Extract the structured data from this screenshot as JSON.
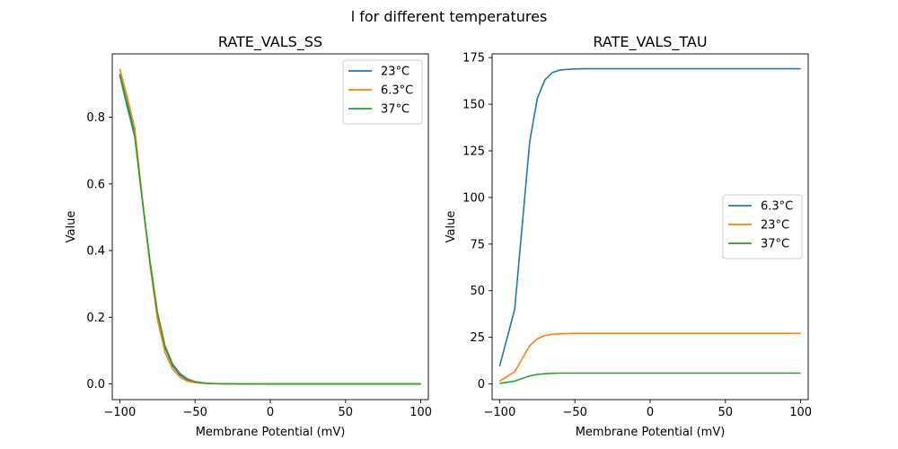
{
  "suptitle": "l for different temperatures",
  "chart_data": [
    {
      "type": "line",
      "title": "RATE_VALS_SS",
      "xlabel": "Membrane Potential (mV)",
      "ylabel": "Value",
      "xlim": [
        -105,
        105
      ],
      "ylim": [
        -0.047,
        0.99
      ],
      "xticks": [
        -100,
        -50,
        0,
        50,
        100
      ],
      "xtick_labels": [
        "−100",
        "−50",
        "0",
        "50",
        "100"
      ],
      "yticks": [
        0.0,
        0.2,
        0.4,
        0.6,
        0.8
      ],
      "ytick_labels": [
        "0.0",
        "0.2",
        "0.4",
        "0.6",
        "0.8"
      ],
      "legend_position": "top-right",
      "x": [
        -100,
        -95,
        -90,
        -85,
        -80,
        -75,
        -70,
        -65,
        -60,
        -55,
        -50,
        -45,
        -40,
        -30,
        -20,
        0,
        50,
        100
      ],
      "series": [
        {
          "name": "23°C",
          "color": "#1f77b4",
          "values": [
            0.93,
            0.84,
            0.75,
            0.55,
            0.37,
            0.21,
            0.11,
            0.055,
            0.027,
            0.012,
            0.006,
            0.003,
            0.0012,
            0.0003,
            0.0001,
            0.0,
            0.0,
            0.0
          ]
        },
        {
          "name": "6.3°C",
          "color": "#ff7f0e",
          "values": [
            0.945,
            0.86,
            0.765,
            0.555,
            0.36,
            0.195,
            0.095,
            0.045,
            0.02,
            0.008,
            0.004,
            0.002,
            0.0008,
            0.0002,
            0.0001,
            0.0,
            0.0,
            0.0
          ]
        },
        {
          "name": "37°C",
          "color": "#2ca02c",
          "values": [
            0.925,
            0.83,
            0.74,
            0.55,
            0.37,
            0.215,
            0.115,
            0.06,
            0.031,
            0.015,
            0.007,
            0.0035,
            0.0015,
            0.0004,
            0.0001,
            0.0,
            0.0,
            0.0
          ]
        }
      ]
    },
    {
      "type": "line",
      "title": "RATE_VALS_TAU",
      "xlabel": "Membrane Potential (mV)",
      "ylabel": "Value",
      "xlim": [
        -105,
        105
      ],
      "ylim": [
        -8.4,
        177
      ],
      "xticks": [
        -100,
        -50,
        0,
        50,
        100
      ],
      "xtick_labels": [
        "−100",
        "−50",
        "0",
        "50",
        "100"
      ],
      "yticks": [
        0,
        25,
        50,
        75,
        100,
        125,
        150,
        175
      ],
      "ytick_labels": [
        "0",
        "25",
        "50",
        "75",
        "100",
        "125",
        "150",
        "175"
      ],
      "legend_position": "center-right",
      "x": [
        -100,
        -90,
        -85,
        -80,
        -75,
        -70,
        -65,
        -60,
        -55,
        -50,
        -45,
        -40,
        -30,
        0,
        50,
        100
      ],
      "series": [
        {
          "name": "6.3°C",
          "color": "#1f77b4",
          "values": [
            9.5,
            40,
            85,
            130,
            153,
            163,
            167,
            168.3,
            168.7,
            168.9,
            169,
            169,
            169,
            169,
            169,
            169
          ]
        },
        {
          "name": "23°C",
          "color": "#ff7f0e",
          "values": [
            1.5,
            6.5,
            13.5,
            20.5,
            24.2,
            25.9,
            26.6,
            26.9,
            27.0,
            27.1,
            27.1,
            27.1,
            27.1,
            27.1,
            27.1,
            27.1
          ]
        },
        {
          "name": "37°C",
          "color": "#2ca02c",
          "values": [
            0.3,
            1.5,
            2.9,
            4.3,
            5.1,
            5.5,
            5.7,
            5.8,
            5.8,
            5.8,
            5.8,
            5.8,
            5.8,
            5.8,
            5.8,
            5.8
          ]
        }
      ]
    }
  ]
}
